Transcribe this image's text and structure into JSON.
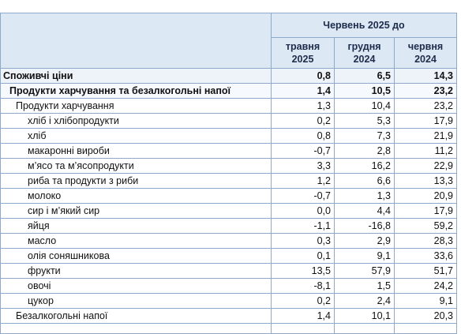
{
  "header": {
    "group_label": "Червень 2025 до",
    "columns": [
      {
        "line1": "травня",
        "line2": "2025"
      },
      {
        "line1": "грудня",
        "line2": "2024"
      },
      {
        "line1": "червня",
        "line2": "2024"
      }
    ]
  },
  "rows": [
    {
      "name": "Споживчі ціни",
      "v1": "0,8",
      "v2": "6,5",
      "v3": "14,3"
    },
    {
      "name": "Продукти харчування та безалкогольні напої",
      "v1": "1,4",
      "v2": "10,5",
      "v3": "23,2"
    },
    {
      "name": "Продукти харчування",
      "v1": "1,3",
      "v2": "10,4",
      "v3": "23,2"
    },
    {
      "name": "хліб і хлібопродукти",
      "v1": "0,2",
      "v2": "5,3",
      "v3": "17,9"
    },
    {
      "name": "хліб",
      "v1": "0,8",
      "v2": "7,3",
      "v3": "21,9"
    },
    {
      "name": "макаронні вироби",
      "v1": "-0,7",
      "v2": "2,8",
      "v3": "11,2"
    },
    {
      "name": "м’ясо та м’ясопродукти",
      "v1": "3,3",
      "v2": "16,2",
      "v3": "22,9"
    },
    {
      "name": "риба та продукти з риби",
      "v1": "1,2",
      "v2": "6,6",
      "v3": "13,3"
    },
    {
      "name": "молоко",
      "v1": "-0,7",
      "v2": "1,3",
      "v3": "20,9"
    },
    {
      "name": "сир і м’який сир",
      "v1": "0,0",
      "v2": "4,4",
      "v3": "17,9"
    },
    {
      "name": "яйця",
      "v1": "-1,1",
      "v2": "-16,8",
      "v3": "59,2"
    },
    {
      "name": "масло",
      "v1": "0,3",
      "v2": "2,9",
      "v3": "28,3"
    },
    {
      "name": "олія соняшникова",
      "v1": "0,1",
      "v2": "9,1",
      "v3": "33,6"
    },
    {
      "name": "фрукти",
      "v1": "13,5",
      "v2": "57,9",
      "v3": "51,7"
    },
    {
      "name": "овочі",
      "v1": "-8,1",
      "v2": "1,5",
      "v3": "24,2"
    },
    {
      "name": "цукор",
      "v1": "0,2",
      "v2": "2,4",
      "v3": "9,1"
    },
    {
      "name": "Безалкогольні напої",
      "v1": "1,4",
      "v2": "10,1",
      "v3": "20,3"
    }
  ]
}
